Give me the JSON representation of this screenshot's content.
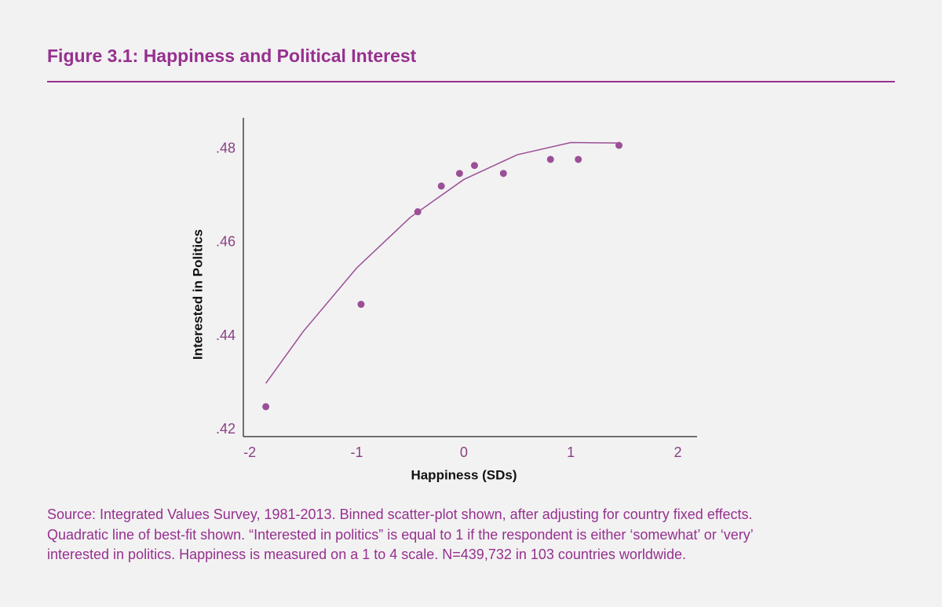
{
  "title": "Figure 3.1: Happiness and Political Interest",
  "chart_data": {
    "type": "scatter",
    "xlabel": "Happiness (SDs)",
    "ylabel": "Interested in Politics",
    "xlim": [
      -2.06,
      2.18
    ],
    "ylim": [
      0.4185,
      0.4867
    ],
    "xticks": [
      -2,
      -1,
      0,
      1,
      2
    ],
    "yticks": [
      {
        "value": 0.42,
        "label": ".42"
      },
      {
        "value": 0.44,
        "label": ".44"
      },
      {
        "value": 0.46,
        "label": ".46"
      },
      {
        "value": 0.48,
        "label": ".48"
      }
    ],
    "points": {
      "color": "#9b4f96",
      "x": [
        -1.85,
        -0.96,
        -0.43,
        -0.21,
        -0.04,
        0.1,
        0.37,
        0.81,
        1.07,
        1.45
      ],
      "values": [
        0.4249,
        0.4468,
        0.4666,
        0.4721,
        0.4748,
        0.4765,
        0.4748,
        0.4778,
        0.4778,
        0.4808
      ]
    },
    "fit_line": {
      "color": "#9b4f96",
      "x": [
        -1.85,
        -1.5,
        -1,
        -0.5,
        0,
        0.5,
        1,
        1.44
      ],
      "values": [
        0.4299,
        0.441,
        0.4546,
        0.4654,
        0.4735,
        0.4788,
        0.4814,
        0.4813
      ]
    }
  },
  "caption": [
    "Source: Integrated Values Survey, 1981-2013. Binned scatter-plot shown, after adjusting for country fixed effects.",
    "Quadratic line of best-fit shown. “Interested in politics” is equal to 1 if the respondent is either ‘somewhat’ or ‘very’",
    "interested in politics. Happiness is measured on a 1 to 4 scale. N=439,732 in 103 countries worldwide."
  ]
}
